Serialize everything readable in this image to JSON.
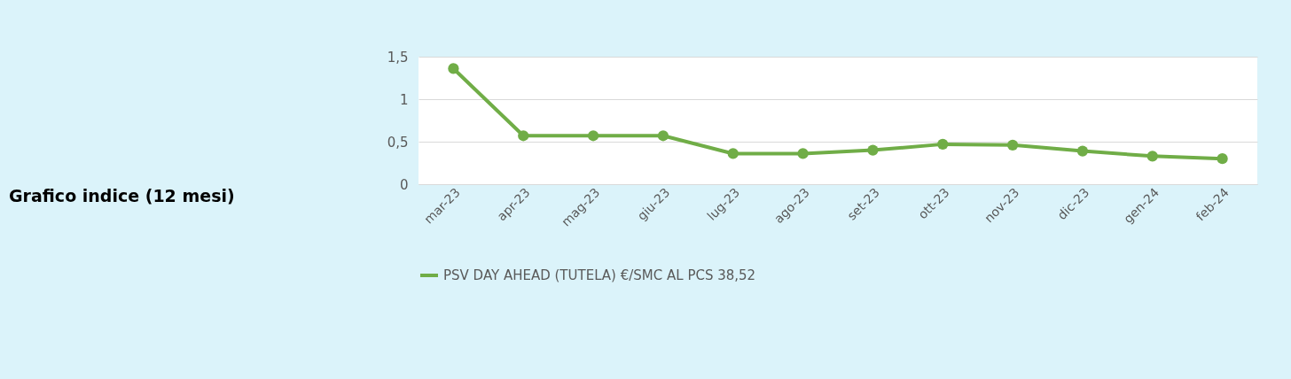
{
  "chart_data": {
    "type": "line",
    "title": "Grafico indice (12 mesi)",
    "categories": [
      "mar-23",
      "apr-23",
      "mag-23",
      "giu-23",
      "lug-23",
      "ago-23",
      "set-23",
      "ott-23",
      "nov-23",
      "dic-23",
      "gen-24",
      "feb-24"
    ],
    "series": [
      {
        "name": "PSV DAY AHEAD (TUTELA) €/SMC AL PCS 38,52",
        "color": "#70ad47",
        "values": [
          1.36,
          0.57,
          0.57,
          0.57,
          0.36,
          0.36,
          0.4,
          0.47,
          0.46,
          0.39,
          0.33,
          0.3
        ]
      }
    ],
    "ylim": [
      0,
      1.5
    ],
    "yticks": [
      0,
      {
        "value": 0.5,
        "label": "0,5"
      },
      1,
      {
        "value": 1.5,
        "label": "1,5"
      }
    ],
    "grid": "y",
    "legend": "bottom",
    "marker": "circle",
    "line_style": "solid"
  }
}
